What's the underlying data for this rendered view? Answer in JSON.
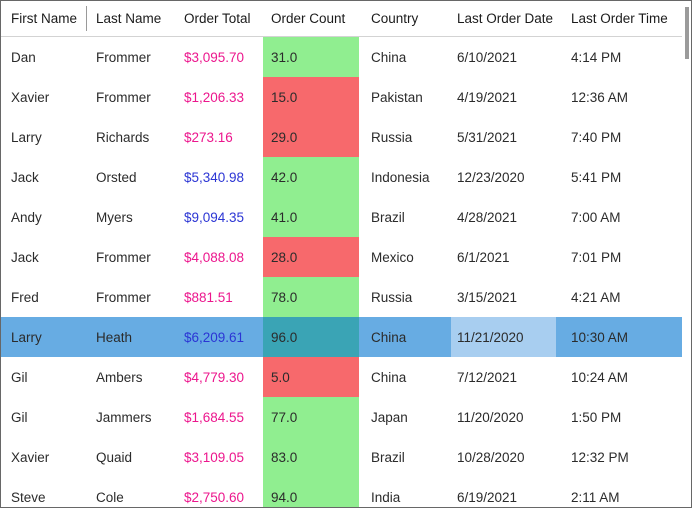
{
  "grid": {
    "columns": [
      {
        "key": "first_name",
        "label": "First Name"
      },
      {
        "key": "last_name",
        "label": "Last Name"
      },
      {
        "key": "order_total",
        "label": "Order Total"
      },
      {
        "key": "order_count",
        "label": "Order Count"
      },
      {
        "key": "country",
        "label": "Country"
      },
      {
        "key": "last_order_date",
        "label": "Last Order Date"
      },
      {
        "key": "last_order_time",
        "label": "Last Order Time"
      }
    ],
    "rows": [
      {
        "first_name": "Dan",
        "last_name": "Frommer",
        "order_total": "$3,095.70",
        "order_count": "31.0",
        "country": "China",
        "last_order_date": "6/10/2021",
        "last_order_time": "4:14 PM",
        "order_total_color": "pink",
        "order_count_bg": "green",
        "selected": false
      },
      {
        "first_name": "Xavier",
        "last_name": "Frommer",
        "order_total": "$1,206.33",
        "order_count": "15.0",
        "country": "Pakistan",
        "last_order_date": "4/19/2021",
        "last_order_time": "12:36 AM",
        "order_total_color": "pink",
        "order_count_bg": "red",
        "selected": false
      },
      {
        "first_name": "Larry",
        "last_name": "Richards",
        "order_total": "$273.16",
        "order_count": "29.0",
        "country": "Russia",
        "last_order_date": "5/31/2021",
        "last_order_time": "7:40 PM",
        "order_total_color": "pink",
        "order_count_bg": "red",
        "selected": false
      },
      {
        "first_name": "Jack",
        "last_name": "Orsted",
        "order_total": "$5,340.98",
        "order_count": "42.0",
        "country": "Indonesia",
        "last_order_date": "12/23/2020",
        "last_order_time": "5:41 PM",
        "order_total_color": "blue",
        "order_count_bg": "green",
        "selected": false
      },
      {
        "first_name": "Andy",
        "last_name": "Myers",
        "order_total": "$9,094.35",
        "order_count": "41.0",
        "country": "Brazil",
        "last_order_date": "4/28/2021",
        "last_order_time": "7:00 AM",
        "order_total_color": "blue",
        "order_count_bg": "green",
        "selected": false
      },
      {
        "first_name": "Jack",
        "last_name": "Frommer",
        "order_total": "$4,088.08",
        "order_count": "28.0",
        "country": "Mexico",
        "last_order_date": "6/1/2021",
        "last_order_time": "7:01 PM",
        "order_total_color": "pink",
        "order_count_bg": "red",
        "selected": false
      },
      {
        "first_name": "Fred",
        "last_name": "Frommer",
        "order_total": "$881.51",
        "order_count": "78.0",
        "country": "Russia",
        "last_order_date": "3/15/2021",
        "last_order_time": "4:21 AM",
        "order_total_color": "pink",
        "order_count_bg": "green",
        "selected": false
      },
      {
        "first_name": "Larry",
        "last_name": "Heath",
        "order_total": "$6,209.61",
        "order_count": "96.0",
        "country": "China",
        "last_order_date": "11/21/2020",
        "last_order_time": "10:30 AM",
        "order_total_color": "blue",
        "order_count_bg": "green",
        "selected": true
      },
      {
        "first_name": "Gil",
        "last_name": "Ambers",
        "order_total": "$4,779.30",
        "order_count": "5.0",
        "country": "China",
        "last_order_date": "7/12/2021",
        "last_order_time": "10:24 AM",
        "order_total_color": "pink",
        "order_count_bg": "red",
        "selected": false
      },
      {
        "first_name": "Gil",
        "last_name": "Jammers",
        "order_total": "$1,684.55",
        "order_count": "77.0",
        "country": "Japan",
        "last_order_date": "11/20/2020",
        "last_order_time": "1:50 PM",
        "order_total_color": "pink",
        "order_count_bg": "green",
        "selected": false
      },
      {
        "first_name": "Xavier",
        "last_name": "Quaid",
        "order_total": "$3,109.05",
        "order_count": "83.0",
        "country": "Brazil",
        "last_order_date": "10/28/2020",
        "last_order_time": "12:32 PM",
        "order_total_color": "pink",
        "order_count_bg": "green",
        "selected": false
      },
      {
        "first_name": "Steve",
        "last_name": "Cole",
        "order_total": "$2,750.60",
        "order_count": "94.0",
        "country": "India",
        "last_order_date": "6/19/2021",
        "last_order_time": "2:11 AM",
        "order_total_color": "pink",
        "order_count_bg": "green",
        "selected": false
      }
    ]
  },
  "colors": {
    "total_low": "#ec168d",
    "total_high": "#2b35d4",
    "count_good": "#90ee90",
    "count_bad": "#f7696c",
    "count_good_selected": "#3aa4b5",
    "selection": "#67ace3",
    "selection_date": "#a8cef0",
    "border": "#676767",
    "header_line": "#d3d3d3",
    "header_separator": "#9a9a9a",
    "scroll_thumb": "#9b9b9b",
    "text": "#2b2b2b"
  }
}
